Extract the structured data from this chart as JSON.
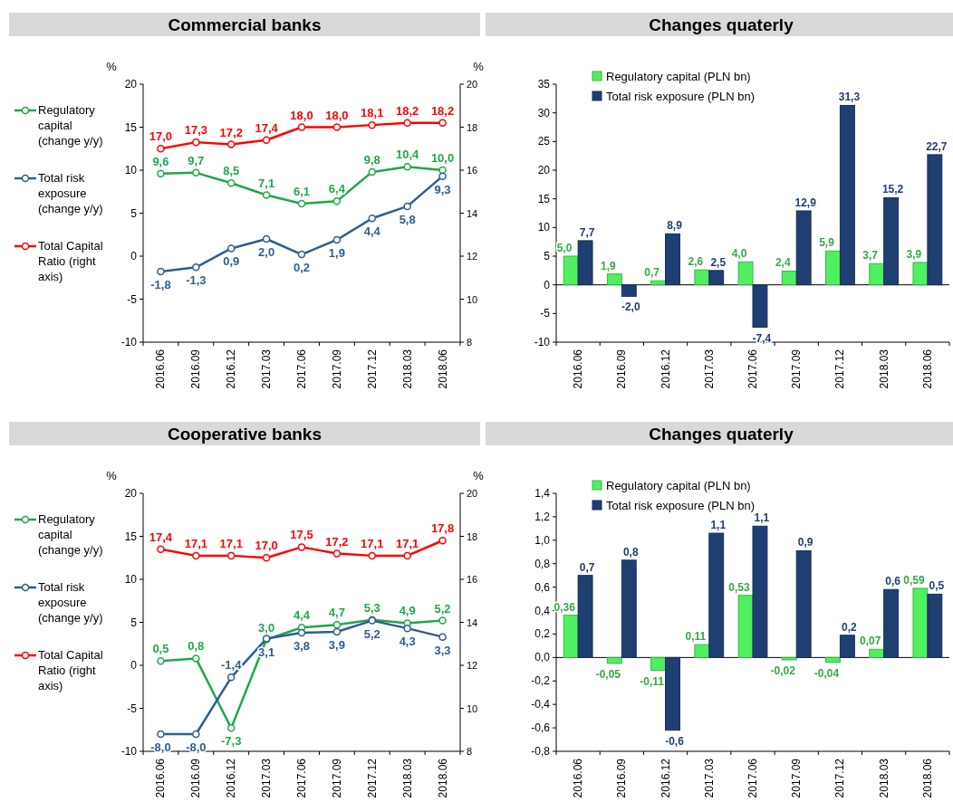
{
  "chart_data": [
    {
      "type": "line",
      "title": "Commercial banks",
      "ylabel": "%",
      "y2label": "%",
      "categories": [
        "2016.06",
        "2016.09",
        "2016.12",
        "2017.03",
        "2017.06",
        "2017.09",
        "2017.12",
        "2018.03",
        "2018.06"
      ],
      "ylim": [
        -10,
        20
      ],
      "yticks": [
        -10,
        -5,
        0,
        5,
        10,
        15,
        20
      ],
      "y2lim": [
        8,
        20
      ],
      "y2ticks": [
        8,
        10,
        12,
        14,
        16,
        18,
        20
      ],
      "legend": "left",
      "marker": "circle",
      "series": [
        {
          "name": "Regulatory capital (change y/y)",
          "color": "#1fa84a",
          "values": [
            9.6,
            9.7,
            8.5,
            7.1,
            6.1,
            6.4,
            9.8,
            10.4,
            10.0
          ],
          "value_labels": [
            "9,6",
            "9,7",
            "8,5",
            "7,1",
            "6,1",
            "6,4",
            "9,8",
            "10,4",
            "10,0"
          ]
        },
        {
          "name": "Total risk exposure (change y/y)",
          "color": "#2f5e8e",
          "values": [
            -1.8,
            -1.3,
            0.9,
            2.0,
            0.2,
            1.9,
            4.4,
            5.8,
            9.3
          ],
          "value_labels": [
            "-1,8",
            "-1,3",
            "0,9",
            "2,0",
            "0,2",
            "1,9",
            "4,4",
            "5,8",
            "9,3"
          ]
        },
        {
          "name": "Total Capital Ratio (right axis)",
          "color": "#ff0000",
          "axis": "y2",
          "values": [
            17.0,
            17.3,
            17.2,
            17.4,
            18.0,
            18.0,
            18.1,
            18.2,
            18.2
          ],
          "value_labels": [
            "17,0",
            "17,3",
            "17,2",
            "17,4",
            "18,0",
            "18,0",
            "18,1",
            "18,2",
            "18,2"
          ]
        }
      ]
    },
    {
      "type": "bar",
      "title": "Changes quaterly",
      "categories": [
        "2016.06",
        "2016.09",
        "2016.12",
        "2017.03",
        "2017.06",
        "2017.09",
        "2017.12",
        "2018.03",
        "2018.06"
      ],
      "ylim": [
        -10,
        35
      ],
      "yticks": [
        -10,
        -5,
        0,
        5,
        10,
        15,
        20,
        25,
        30,
        35
      ],
      "legend": "top left",
      "series": [
        {
          "name": "Regulatory capital (PLN bn)",
          "color": "#4ff060",
          "values": [
            5.0,
            1.9,
            0.7,
            2.6,
            4.0,
            2.4,
            5.9,
            3.7,
            3.9
          ],
          "value_labels": [
            "5,0",
            "1,9",
            "0,7",
            "2,6",
            "4,0",
            "2,4",
            "5,9",
            "3,7",
            "3,9"
          ]
        },
        {
          "name": "Total risk exposure (PLN bn)",
          "color": "#1f3f73",
          "values": [
            7.7,
            -2.0,
            8.9,
            2.5,
            -7.4,
            12.9,
            31.3,
            15.2,
            22.7
          ],
          "value_labels": [
            "7,7",
            "-2,0",
            "8,9",
            "2,5",
            "-7,4",
            "12,9",
            "31,3",
            "15,2",
            "22,7"
          ]
        }
      ]
    },
    {
      "type": "line",
      "title": "Cooperative banks",
      "ylabel": "%",
      "y2label": "%",
      "categories": [
        "2016.06",
        "2016.09",
        "2016.12",
        "2017.03",
        "2017.06",
        "2017.09",
        "2017.12",
        "2018.03",
        "2018.06"
      ],
      "ylim": [
        -10,
        20
      ],
      "yticks": [
        -10,
        -5,
        0,
        5,
        10,
        15,
        20
      ],
      "y2lim": [
        8,
        20
      ],
      "y2ticks": [
        8,
        10,
        12,
        14,
        16,
        18,
        20
      ],
      "legend": "left",
      "marker": "circle",
      "series": [
        {
          "name": "Regulatory capital (change y/y)",
          "color": "#1fa84a",
          "values": [
            0.5,
            0.8,
            -7.3,
            3.0,
            4.4,
            4.7,
            5.3,
            4.9,
            5.2
          ],
          "value_labels": [
            "0,5",
            "0,8",
            "-7,3",
            "3,0",
            "4,4",
            "4,7",
            "5,3",
            "4,9",
            "5,2"
          ]
        },
        {
          "name": "Total risk exposure (change y/y)",
          "color": "#2f5e8e",
          "values": [
            -8.0,
            -8.0,
            -1.4,
            3.1,
            3.8,
            3.9,
            5.2,
            4.3,
            3.3
          ],
          "value_labels": [
            "-8,0",
            "-8,0",
            "-1,4",
            "3,1",
            "3,8",
            "3,9",
            "5,2",
            "4,3",
            "3,3"
          ]
        },
        {
          "name": "Total Capital Ratio (right axis)",
          "color": "#ff0000",
          "axis": "y2",
          "values": [
            17.4,
            17.1,
            17.1,
            17.0,
            17.5,
            17.2,
            17.1,
            17.1,
            17.8
          ],
          "value_labels": [
            "17,4",
            "17,1",
            "17,1",
            "17,0",
            "17,5",
            "17,2",
            "17,1",
            "17,1",
            "17,8"
          ]
        }
      ]
    },
    {
      "type": "bar",
      "title": "Changes quaterly",
      "categories": [
        "2016.06",
        "2016.09",
        "2016.12",
        "2017.03",
        "2017.06",
        "2017.09",
        "2017.12",
        "2018.03",
        "2018.06"
      ],
      "ylim": [
        -0.8,
        1.4
      ],
      "yticks": [
        {
          "value": -0.8,
          "label": "-0,8"
        },
        {
          "value": -0.6,
          "label": "-0,6"
        },
        {
          "value": -0.4,
          "label": "-0,4"
        },
        {
          "value": -0.2,
          "label": "-0,2"
        },
        {
          "value": 0,
          "label": "0,0"
        },
        {
          "value": 0.2,
          "label": "0,2"
        },
        {
          "value": 0.4,
          "label": "0,4"
        },
        {
          "value": 0.6,
          "label": "0,6"
        },
        {
          "value": 0.8,
          "label": "0,8"
        },
        {
          "value": 1.0,
          "label": "1,0"
        },
        {
          "value": 1.2,
          "label": "1,2"
        },
        {
          "value": 1.4,
          "label": "1,4"
        }
      ],
      "legend": "top left",
      "series": [
        {
          "name": "Regulatory capital (PLN bn)",
          "color": "#4ff060",
          "values": [
            0.36,
            -0.05,
            -0.11,
            0.11,
            0.53,
            -0.02,
            -0.04,
            0.07,
            0.59
          ],
          "value_labels": [
            "0,36",
            "-0,05",
            "-0,11",
            "0,11",
            "0,53",
            "-0,02",
            "-0,04",
            "0,07",
            "0,59"
          ]
        },
        {
          "name": "Total risk exposure (PLN bn)",
          "color": "#1f3f73",
          "values": [
            0.7,
            0.83,
            -0.62,
            1.06,
            1.12,
            0.91,
            0.19,
            0.58,
            0.54
          ],
          "value_labels": [
            "0,7",
            "0,8",
            "-0,6",
            "1,1",
            "1,1",
            "0,9",
            "0,2",
            "0,6",
            "0,5"
          ]
        }
      ]
    }
  ]
}
